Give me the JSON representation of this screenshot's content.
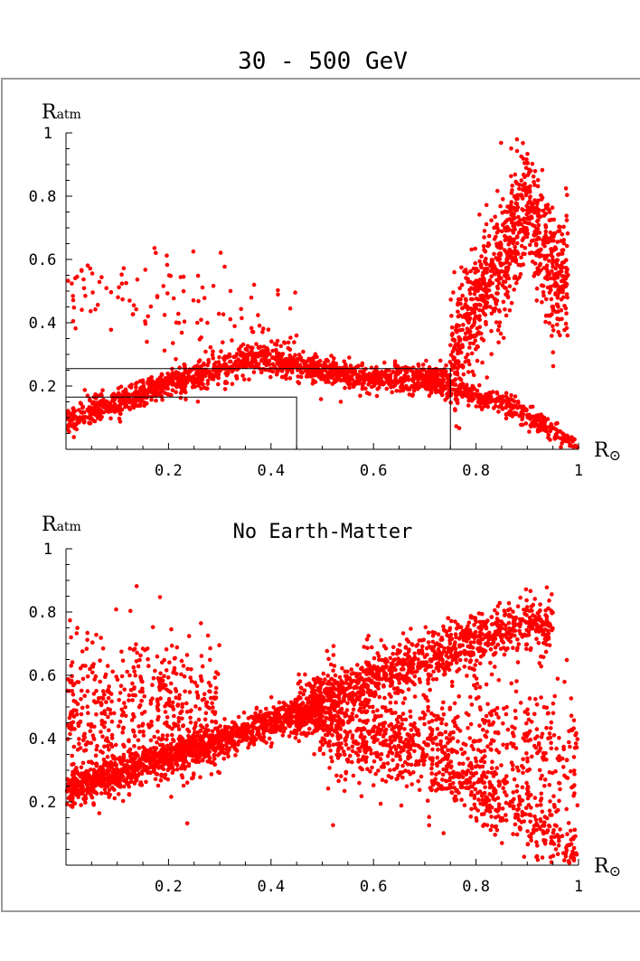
{
  "figure": {
    "title": "30 - 500 GeV",
    "colors": {
      "points": "#ff0000",
      "axes": "#000000",
      "frame": "#999999",
      "background": "#ffffff"
    }
  },
  "chart_data": [
    {
      "type": "scatter",
      "subtitle": "",
      "xlabel": "R⊙",
      "ylabel": "Ratm",
      "xlim": [
        0,
        1
      ],
      "ylim": [
        0,
        1
      ],
      "x_ticks": [
        "0.2",
        "0.4",
        "0.6",
        "0.8",
        "1"
      ],
      "y_ticks": [
        "0.2",
        "0.4",
        "0.6",
        "0.8",
        "1"
      ],
      "grid": false,
      "marker_color": "#ff0000",
      "boxes": [
        {
          "x": [
            0,
            0.75
          ],
          "y": [
            0,
            0.255
          ]
        },
        {
          "x": [
            0,
            0.45
          ],
          "y": [
            0,
            0.165
          ]
        }
      ],
      "density": [
        {
          "region": "band",
          "x": [
            0,
            0.75
          ],
          "y_center_at_x": [
            [
              0,
              0.09
            ],
            [
              0.2,
              0.21
            ],
            [
              0.38,
              0.29
            ],
            [
              0.5,
              0.25
            ],
            [
              0.6,
              0.22
            ],
            [
              0.75,
              0.23
            ]
          ],
          "spread": 0.04,
          "count": 1500
        },
        {
          "region": "lower-branch",
          "x": [
            0.7,
            1.0
          ],
          "y_center_at_x": [
            [
              0.7,
              0.21
            ],
            [
              0.85,
              0.15
            ],
            [
              0.95,
              0.06
            ],
            [
              1.0,
              0.0
            ]
          ],
          "spread": 0.03,
          "count": 400
        },
        {
          "region": "peak",
          "x": [
            0.75,
            0.98
          ],
          "y_center_at_x": [
            [
              0.75,
              0.3
            ],
            [
              0.85,
              0.6
            ],
            [
              0.9,
              0.78
            ],
            [
              0.95,
              0.55
            ]
          ],
          "spread": 0.18,
          "count": 900
        },
        {
          "region": "outliers",
          "x": [
            0,
            0.45
          ],
          "y_center_at_x": [
            [
              0,
              0.5
            ],
            [
              0.45,
              0.4
            ]
          ],
          "spread": 0.15,
          "count": 120
        }
      ]
    },
    {
      "type": "scatter",
      "subtitle": "No Earth-Matter",
      "xlabel": "R⊙",
      "ylabel": "Ratm",
      "xlim": [
        0,
        1
      ],
      "ylim": [
        0,
        1
      ],
      "x_ticks": [
        "0.2",
        "0.4",
        "0.6",
        "0.8",
        "1"
      ],
      "y_ticks": [
        "0.2",
        "0.4",
        "0.6",
        "0.8",
        "1"
      ],
      "grid": false,
      "marker_color": "#ff0000",
      "boxes": [],
      "density": [
        {
          "region": "band",
          "x": [
            0,
            0.5
          ],
          "y_center_at_x": [
            [
              0,
              0.24
            ],
            [
              0.2,
              0.34
            ],
            [
              0.4,
              0.45
            ],
            [
              0.5,
              0.5
            ]
          ],
          "spread": 0.05,
          "count": 1400
        },
        {
          "region": "upper-wedge",
          "x": [
            0.45,
            0.95
          ],
          "y_center_at_x": [
            [
              0.45,
              0.5
            ],
            [
              0.7,
              0.65
            ],
            [
              0.88,
              0.76
            ]
          ],
          "spread": 0.08,
          "count": 1000
        },
        {
          "region": "lower-wedge",
          "x": [
            0.45,
            1.0
          ],
          "y_center_at_x": [
            [
              0.45,
              0.47
            ],
            [
              0.7,
              0.35
            ],
            [
              0.9,
              0.15
            ],
            [
              1.0,
              0.0
            ]
          ],
          "spread": 0.1,
          "count": 700
        },
        {
          "region": "fan",
          "x": [
            0,
            0.3
          ],
          "y_center_at_x": [
            [
              0,
              0.5
            ],
            [
              0.3,
              0.5
            ]
          ],
          "spread": 0.22,
          "count": 500
        },
        {
          "region": "right-fill",
          "x": [
            0.5,
            1.0
          ],
          "y_center_at_x": [
            [
              0.5,
              0.45
            ],
            [
              1.0,
              0.35
            ]
          ],
          "spread": 0.2,
          "count": 600
        }
      ]
    }
  ]
}
